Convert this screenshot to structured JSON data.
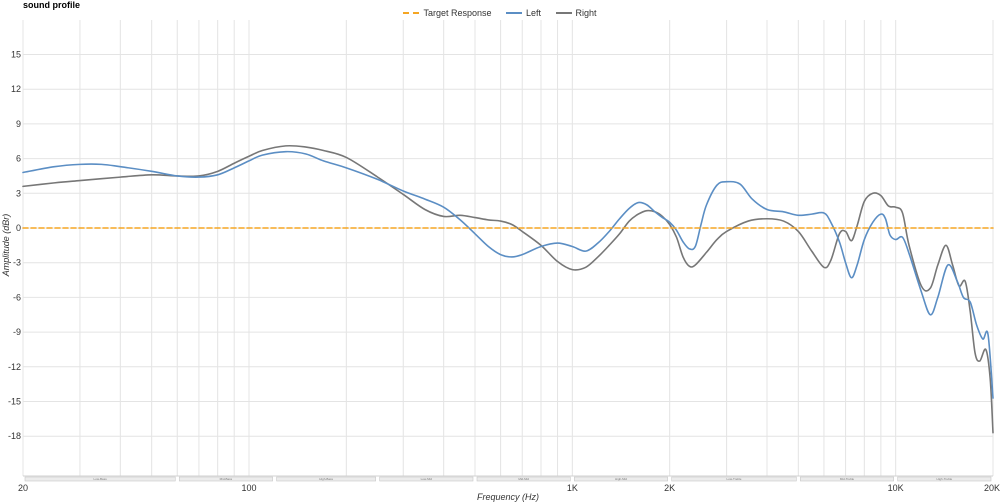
{
  "page": {
    "title": "sound profile"
  },
  "colors": {
    "target": "#f5a623",
    "left": "#5b8ec4",
    "right": "#777777",
    "grid": "#e4e4e4",
    "band_fill": "#ececec",
    "band_stroke": "#c8c8c8"
  },
  "chart_data": {
    "type": "line",
    "xlabel": "Frequency (Hz)",
    "ylabel": "Amplitude (dBr)",
    "xscale": "log",
    "xlim": [
      20,
      20000
    ],
    "ylim": [
      -21,
      18
    ],
    "yticks": [
      15,
      12,
      9,
      6,
      3,
      0,
      -3,
      -6,
      -9,
      -12,
      -15,
      -18
    ],
    "xticks": [
      {
        "value": 20,
        "label": "20"
      },
      {
        "value": 100,
        "label": "100"
      },
      {
        "value": 1000,
        "label": "1K"
      },
      {
        "value": 2000,
        "label": "2K"
      },
      {
        "value": 10000,
        "label": "10K"
      },
      {
        "value": 20000,
        "label": "20K"
      }
    ],
    "grid": true,
    "legend": {
      "position": "top-center",
      "items": [
        {
          "name": "Target Response",
          "style": "dashed",
          "color_key": "target"
        },
        {
          "name": "Left",
          "style": "solid",
          "color_key": "left"
        },
        {
          "name": "Right",
          "style": "solid",
          "color_key": "right"
        }
      ]
    },
    "bands": [
      {
        "name": "Low-Bass",
        "from": 20,
        "to": 60
      },
      {
        "name": "Mid-Bass",
        "from": 60,
        "to": 120
      },
      {
        "name": "High-Bass",
        "from": 120,
        "to": 250
      },
      {
        "name": "Low-Mid",
        "from": 250,
        "to": 500
      },
      {
        "name": "Mid-Mid",
        "from": 500,
        "to": 1000
      },
      {
        "name": "High-Mid",
        "from": 1000,
        "to": 2000
      },
      {
        "name": "Low-Treble",
        "from": 2000,
        "to": 5000
      },
      {
        "name": "Mid-Treble",
        "from": 5000,
        "to": 10000
      },
      {
        "name": "High-Treble",
        "from": 10000,
        "to": 20000
      }
    ],
    "series": [
      {
        "name": "Target Response",
        "points": [
          [
            20,
            0
          ],
          [
            20000,
            0
          ]
        ]
      },
      {
        "name": "Left",
        "points": [
          [
            20,
            4.8
          ],
          [
            25,
            5.3
          ],
          [
            30,
            5.5
          ],
          [
            35,
            5.5
          ],
          [
            40,
            5.3
          ],
          [
            50,
            4.9
          ],
          [
            60,
            4.5
          ],
          [
            70,
            4.4
          ],
          [
            80,
            4.6
          ],
          [
            90,
            5.2
          ],
          [
            100,
            5.8
          ],
          [
            110,
            6.3
          ],
          [
            130,
            6.6
          ],
          [
            150,
            6.4
          ],
          [
            170,
            5.8
          ],
          [
            200,
            5.2
          ],
          [
            250,
            4.2
          ],
          [
            300,
            3.2
          ],
          [
            350,
            2.5
          ],
          [
            400,
            1.8
          ],
          [
            450,
            0.7
          ],
          [
            500,
            -0.5
          ],
          [
            550,
            -1.6
          ],
          [
            600,
            -2.3
          ],
          [
            650,
            -2.5
          ],
          [
            700,
            -2.3
          ],
          [
            800,
            -1.6
          ],
          [
            900,
            -1.3
          ],
          [
            1000,
            -1.6
          ],
          [
            1100,
            -2.0
          ],
          [
            1200,
            -1.3
          ],
          [
            1300,
            -0.3
          ],
          [
            1400,
            0.8
          ],
          [
            1500,
            1.7
          ],
          [
            1600,
            2.2
          ],
          [
            1700,
            2.0
          ],
          [
            1800,
            1.4
          ],
          [
            1900,
            0.9
          ],
          [
            2000,
            0.5
          ],
          [
            2100,
            -0.2
          ],
          [
            2200,
            -1.2
          ],
          [
            2300,
            -1.8
          ],
          [
            2400,
            -1.6
          ],
          [
            2500,
            0.3
          ],
          [
            2600,
            2.0
          ],
          [
            2800,
            3.7
          ],
          [
            3000,
            4.0
          ],
          [
            3300,
            3.8
          ],
          [
            3600,
            2.5
          ],
          [
            4000,
            1.6
          ],
          [
            4500,
            1.4
          ],
          [
            5000,
            1.1
          ],
          [
            5500,
            1.2
          ],
          [
            6000,
            1.3
          ],
          [
            6300,
            0.5
          ],
          [
            6700,
            -1.2
          ],
          [
            7000,
            -3.0
          ],
          [
            7300,
            -4.3
          ],
          [
            7600,
            -3.2
          ],
          [
            8000,
            -1.0
          ],
          [
            8500,
            0.5
          ],
          [
            9000,
            1.2
          ],
          [
            9300,
            0.8
          ],
          [
            9600,
            -0.6
          ],
          [
            10000,
            -1.0
          ],
          [
            10500,
            -0.8
          ],
          [
            11000,
            -2.2
          ],
          [
            12000,
            -5.5
          ],
          [
            12800,
            -7.5
          ],
          [
            13500,
            -6.0
          ],
          [
            14500,
            -3.2
          ],
          [
            15500,
            -4.6
          ],
          [
            16200,
            -6.0
          ],
          [
            17000,
            -6.4
          ],
          [
            17800,
            -8.4
          ],
          [
            18600,
            -9.6
          ],
          [
            19300,
            -9.2
          ],
          [
            20000,
            -14.7
          ]
        ]
      },
      {
        "name": "Right",
        "points": [
          [
            20,
            3.6
          ],
          [
            25,
            3.9
          ],
          [
            30,
            4.1
          ],
          [
            40,
            4.4
          ],
          [
            50,
            4.6
          ],
          [
            60,
            4.5
          ],
          [
            70,
            4.5
          ],
          [
            80,
            4.9
          ],
          [
            90,
            5.6
          ],
          [
            100,
            6.2
          ],
          [
            110,
            6.7
          ],
          [
            130,
            7.1
          ],
          [
            150,
            7.0
          ],
          [
            170,
            6.7
          ],
          [
            200,
            6.1
          ],
          [
            250,
            4.4
          ],
          [
            300,
            2.9
          ],
          [
            350,
            1.6
          ],
          [
            400,
            1.0
          ],
          [
            450,
            1.1
          ],
          [
            500,
            0.9
          ],
          [
            550,
            0.7
          ],
          [
            600,
            0.6
          ],
          [
            650,
            0.3
          ],
          [
            700,
            -0.3
          ],
          [
            800,
            -1.5
          ],
          [
            900,
            -2.9
          ],
          [
            1000,
            -3.6
          ],
          [
            1100,
            -3.4
          ],
          [
            1200,
            -2.5
          ],
          [
            1300,
            -1.5
          ],
          [
            1400,
            -0.5
          ],
          [
            1500,
            0.6
          ],
          [
            1600,
            1.2
          ],
          [
            1700,
            1.5
          ],
          [
            1800,
            1.4
          ],
          [
            1900,
            1.0
          ],
          [
            2000,
            0.3
          ],
          [
            2100,
            -0.8
          ],
          [
            2200,
            -2.5
          ],
          [
            2300,
            -3.3
          ],
          [
            2400,
            -3.2
          ],
          [
            2600,
            -2.1
          ],
          [
            2800,
            -1.0
          ],
          [
            3000,
            -0.3
          ],
          [
            3500,
            0.6
          ],
          [
            4000,
            0.8
          ],
          [
            4500,
            0.6
          ],
          [
            5000,
            -0.3
          ],
          [
            5500,
            -2.0
          ],
          [
            6000,
            -3.4
          ],
          [
            6300,
            -2.8
          ],
          [
            6700,
            -0.5
          ],
          [
            7000,
            -0.3
          ],
          [
            7300,
            -1.1
          ],
          [
            7600,
            0.2
          ],
          [
            8000,
            2.3
          ],
          [
            8500,
            3.0
          ],
          [
            9000,
            2.8
          ],
          [
            9500,
            1.9
          ],
          [
            10000,
            1.8
          ],
          [
            10500,
            1.3
          ],
          [
            11000,
            -1.5
          ],
          [
            12000,
            -5.0
          ],
          [
            12800,
            -5.2
          ],
          [
            13500,
            -3.2
          ],
          [
            14300,
            -1.5
          ],
          [
            15000,
            -3.2
          ],
          [
            15700,
            -5.0
          ],
          [
            16400,
            -4.6
          ],
          [
            17000,
            -7.2
          ],
          [
            17600,
            -10.8
          ],
          [
            18200,
            -11.5
          ],
          [
            19000,
            -10.5
          ],
          [
            19600,
            -13.0
          ],
          [
            20000,
            -17.7
          ]
        ]
      }
    ]
  }
}
